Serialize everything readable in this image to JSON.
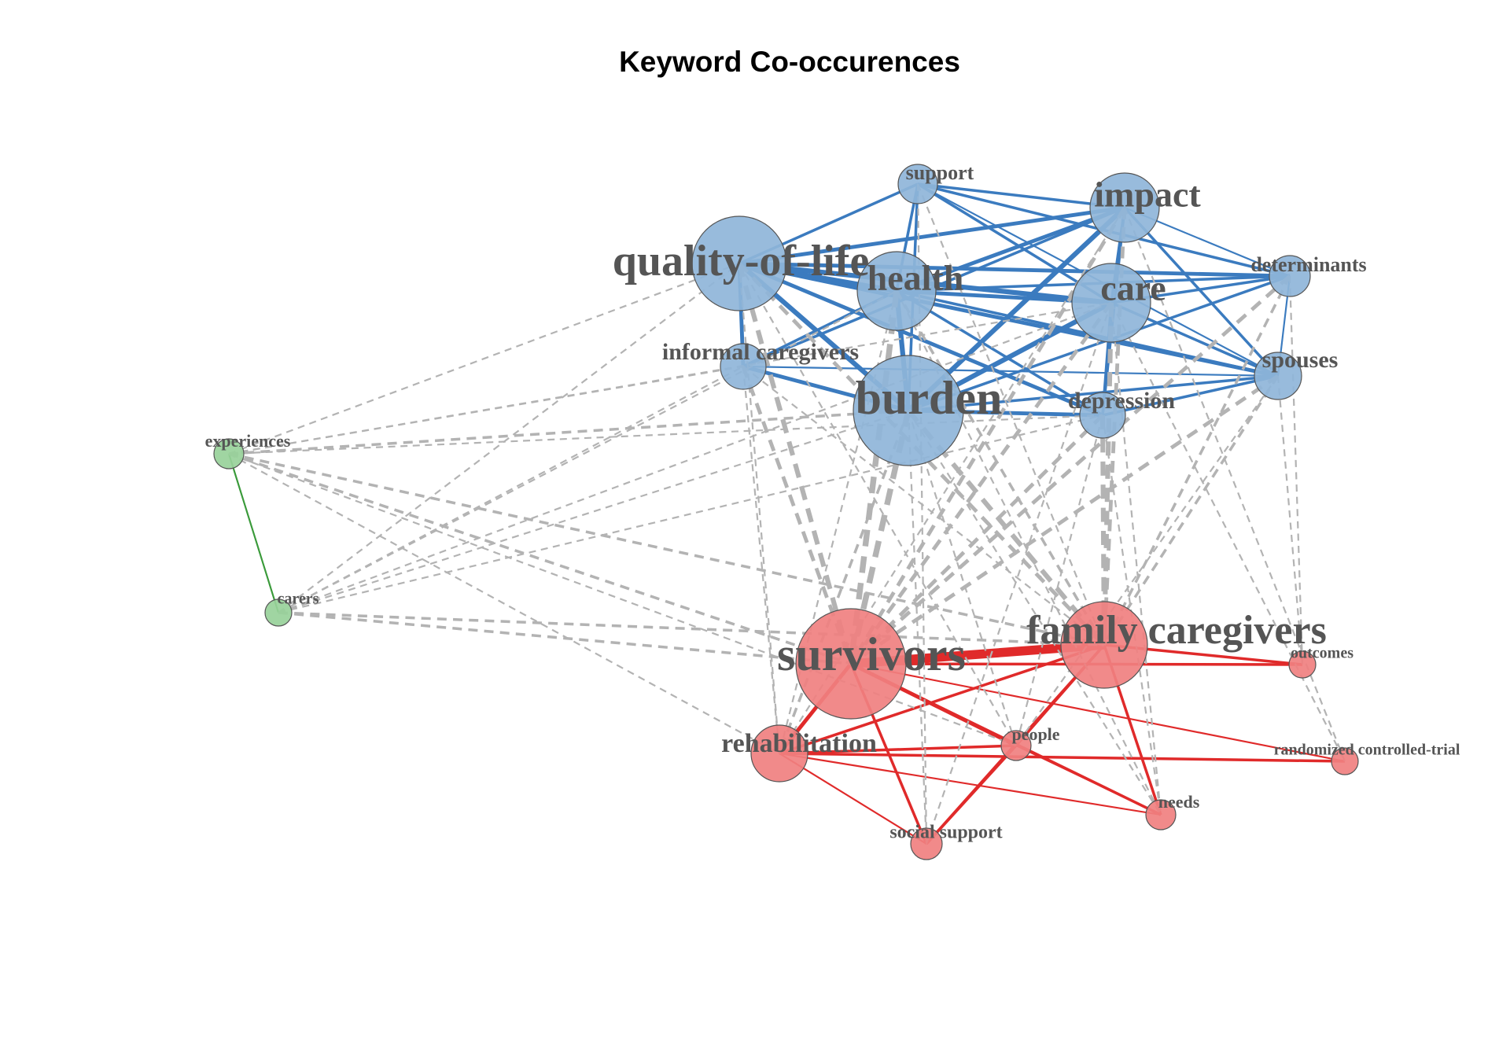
{
  "title": "Keyword Co-occurences",
  "colors": {
    "blue_cluster": "#8fb5d9",
    "blue_edge": "#3b7bbf",
    "red_cluster": "#f08080",
    "red_edge": "#e02a2a",
    "green_cluster": "#98d19a",
    "green_edge": "#3a9a3a",
    "between_edge": "#b3b3b3",
    "label": "#555555"
  },
  "nodes": [
    {
      "id": "quality-of-life",
      "label": "quality-of-life",
      "cluster": "blue"
    },
    {
      "id": "support",
      "label": "support",
      "cluster": "blue"
    },
    {
      "id": "impact",
      "label": "impact",
      "cluster": "blue"
    },
    {
      "id": "health",
      "label": "health",
      "cluster": "blue"
    },
    {
      "id": "care",
      "label": "care",
      "cluster": "blue"
    },
    {
      "id": "determinants",
      "label": "determinants",
      "cluster": "blue"
    },
    {
      "id": "informal-caregivers",
      "label": "informal caregivers",
      "cluster": "blue"
    },
    {
      "id": "burden",
      "label": "burden",
      "cluster": "blue"
    },
    {
      "id": "depression",
      "label": "depression",
      "cluster": "blue"
    },
    {
      "id": "spouses",
      "label": "spouses",
      "cluster": "blue"
    },
    {
      "id": "experiences",
      "label": "experiences",
      "cluster": "green"
    },
    {
      "id": "carers",
      "label": "carers",
      "cluster": "green"
    },
    {
      "id": "survivors",
      "label": "survivors",
      "cluster": "red"
    },
    {
      "id": "family-caregivers",
      "label": "family caregivers",
      "cluster": "red"
    },
    {
      "id": "outcomes",
      "label": "outcomes",
      "cluster": "red"
    },
    {
      "id": "rehabilitation",
      "label": "rehabilitation",
      "cluster": "red"
    },
    {
      "id": "people",
      "label": "people",
      "cluster": "red"
    },
    {
      "id": "randomized-controlled-trial",
      "label": "randomized controlled-trial",
      "cluster": "red"
    },
    {
      "id": "needs",
      "label": "needs",
      "cluster": "red"
    },
    {
      "id": "social-support",
      "label": "social support",
      "cluster": "red"
    }
  ],
  "edges": [
    {
      "source": "quality-of-life",
      "target": "health",
      "weight": 4
    },
    {
      "source": "quality-of-life",
      "target": "burden",
      "weight": 4
    },
    {
      "source": "quality-of-life",
      "target": "care",
      "weight": 4
    },
    {
      "source": "quality-of-life",
      "target": "impact",
      "weight": 3
    },
    {
      "source": "quality-of-life",
      "target": "support",
      "weight": 2
    },
    {
      "source": "quality-of-life",
      "target": "informal-caregivers",
      "weight": 3
    },
    {
      "source": "quality-of-life",
      "target": "depression",
      "weight": 3
    },
    {
      "source": "quality-of-life",
      "target": "spouses",
      "weight": 3
    },
    {
      "source": "quality-of-life",
      "target": "determinants",
      "weight": 3
    },
    {
      "source": "support",
      "target": "impact",
      "weight": 2
    },
    {
      "source": "support",
      "target": "health",
      "weight": 2
    },
    {
      "source": "support",
      "target": "care",
      "weight": 2
    },
    {
      "source": "support",
      "target": "burden",
      "weight": 2
    },
    {
      "source": "support",
      "target": "determinants",
      "weight": 2
    },
    {
      "source": "support",
      "target": "spouses",
      "weight": 1
    },
    {
      "source": "impact",
      "target": "health",
      "weight": 3
    },
    {
      "source": "impact",
      "target": "care",
      "weight": 2
    },
    {
      "source": "impact",
      "target": "burden",
      "weight": 4
    },
    {
      "source": "impact",
      "target": "determinants",
      "weight": 1
    },
    {
      "source": "impact",
      "target": "spouses",
      "weight": 2
    },
    {
      "source": "impact",
      "target": "informal-caregivers",
      "weight": 2
    },
    {
      "source": "impact",
      "target": "depression",
      "weight": 2
    },
    {
      "source": "health",
      "target": "care",
      "weight": 3
    },
    {
      "source": "health",
      "target": "burden",
      "weight": 4
    },
    {
      "source": "health",
      "target": "informal-caregivers",
      "weight": 2
    },
    {
      "source": "health",
      "target": "spouses",
      "weight": 2
    },
    {
      "source": "health",
      "target": "determinants",
      "weight": 2
    },
    {
      "source": "health",
      "target": "depression",
      "weight": 2
    },
    {
      "source": "care",
      "target": "burden",
      "weight": 4
    },
    {
      "source": "care",
      "target": "determinants",
      "weight": 2
    },
    {
      "source": "care",
      "target": "spouses",
      "weight": 2
    },
    {
      "source": "care",
      "target": "depression",
      "weight": 2
    },
    {
      "source": "burden",
      "target": "informal-caregivers",
      "weight": 3
    },
    {
      "source": "burden",
      "target": "depression",
      "weight": 3
    },
    {
      "source": "burden",
      "target": "spouses",
      "weight": 2
    },
    {
      "source": "burden",
      "target": "determinants",
      "weight": 2
    },
    {
      "source": "depression",
      "target": "spouses",
      "weight": 2
    },
    {
      "source": "determinants",
      "target": "spouses",
      "weight": 1
    },
    {
      "source": "informal-caregivers",
      "target": "spouses",
      "weight": 1
    },
    {
      "source": "experiences",
      "target": "carers",
      "weight": 1
    },
    {
      "source": "survivors",
      "target": "family-caregivers",
      "weight": 8
    },
    {
      "source": "survivors",
      "target": "rehabilitation",
      "weight": 3
    },
    {
      "source": "survivors",
      "target": "people",
      "weight": 3
    },
    {
      "source": "survivors",
      "target": "needs",
      "weight": 2
    },
    {
      "source": "survivors",
      "target": "social-support",
      "weight": 2
    },
    {
      "source": "survivors",
      "target": "outcomes",
      "weight": 2
    },
    {
      "source": "survivors",
      "target": "randomized-controlled-trial",
      "weight": 1
    },
    {
      "source": "family-caregivers",
      "target": "rehabilitation",
      "weight": 2
    },
    {
      "source": "family-caregivers",
      "target": "people",
      "weight": 2
    },
    {
      "source": "family-caregivers",
      "target": "needs",
      "weight": 2
    },
    {
      "source": "family-caregivers",
      "target": "outcomes",
      "weight": 2
    },
    {
      "source": "family-caregivers",
      "target": "social-support",
      "weight": 2
    },
    {
      "source": "rehabilitation",
      "target": "people",
      "weight": 2
    },
    {
      "source": "rehabilitation",
      "target": "needs",
      "weight": 1
    },
    {
      "source": "rehabilitation",
      "target": "randomized-controlled-trial",
      "weight": 2
    },
    {
      "source": "rehabilitation",
      "target": "social-support",
      "weight": 1
    },
    {
      "source": "people",
      "target": "needs",
      "weight": 1
    },
    {
      "source": "people",
      "target": "social-support",
      "weight": 2
    },
    {
      "source": "quality-of-life",
      "target": "survivors",
      "weight": 4
    },
    {
      "source": "health",
      "target": "survivors",
      "weight": 5
    },
    {
      "source": "burden",
      "target": "survivors",
      "weight": 5
    },
    {
      "source": "care",
      "target": "survivors",
      "weight": 3
    },
    {
      "source": "impact",
      "target": "survivors",
      "weight": 3
    },
    {
      "source": "depression",
      "target": "survivors",
      "weight": 3
    },
    {
      "source": "informal-caregivers",
      "target": "survivors",
      "weight": 3
    },
    {
      "source": "spouses",
      "target": "survivors",
      "weight": 3
    },
    {
      "source": "determinants",
      "target": "survivors",
      "weight": 3
    },
    {
      "source": "quality-of-life",
      "target": "family-caregivers",
      "weight": 3
    },
    {
      "source": "burden",
      "target": "family-caregivers",
      "weight": 4
    },
    {
      "source": "care",
      "target": "family-caregivers",
      "weight": 4
    },
    {
      "source": "impact",
      "target": "family-caregivers",
      "weight": 3
    },
    {
      "source": "depression",
      "target": "family-caregivers",
      "weight": 4
    },
    {
      "source": "health",
      "target": "family-caregivers",
      "weight": 2
    },
    {
      "source": "spouses",
      "target": "family-caregivers",
      "weight": 2
    },
    {
      "source": "determinants",
      "target": "family-caregivers",
      "weight": 2
    },
    {
      "source": "informal-caregivers",
      "target": "family-caregivers",
      "weight": 1
    },
    {
      "source": "support",
      "target": "family-caregivers",
      "weight": 1
    },
    {
      "source": "informal-caregivers",
      "target": "rehabilitation",
      "weight": 1
    },
    {
      "source": "quality-of-life",
      "target": "rehabilitation",
      "weight": 1
    },
    {
      "source": "burden",
      "target": "rehabilitation",
      "weight": 2
    },
    {
      "source": "health",
      "target": "rehabilitation",
      "weight": 1
    },
    {
      "source": "burden",
      "target": "social-support",
      "weight": 1
    },
    {
      "source": "support",
      "target": "social-support",
      "weight": 1
    },
    {
      "source": "care",
      "target": "social-support",
      "weight": 1
    },
    {
      "source": "health",
      "target": "needs",
      "weight": 1
    },
    {
      "source": "care",
      "target": "needs",
      "weight": 1
    },
    {
      "source": "depression",
      "target": "needs",
      "weight": 1
    },
    {
      "source": "burden",
      "target": "needs",
      "weight": 1
    },
    {
      "source": "spouses",
      "target": "outcomes",
      "weight": 1
    },
    {
      "source": "spouses",
      "target": "people",
      "weight": 1
    },
    {
      "source": "determinants",
      "target": "outcomes",
      "weight": 1
    },
    {
      "source": "impact",
      "target": "randomized-controlled-trial",
      "weight": 1
    },
    {
      "source": "care",
      "target": "randomized-controlled-trial",
      "weight": 1
    },
    {
      "source": "burden",
      "target": "people",
      "weight": 1
    },
    {
      "source": "depression",
      "target": "people",
      "weight": 1
    },
    {
      "source": "quality-of-life",
      "target": "people",
      "weight": 1
    },
    {
      "source": "impact",
      "target": "rehabilitation",
      "weight": 1
    },
    {
      "source": "experiences",
      "target": "quality-of-life",
      "weight": 1
    },
    {
      "source": "experiences",
      "target": "burden",
      "weight": 2
    },
    {
      "source": "experiences",
      "target": "care",
      "weight": 1
    },
    {
      "source": "experiences",
      "target": "informal-caregivers",
      "weight": 1
    },
    {
      "source": "experiences",
      "target": "depression",
      "weight": 1
    },
    {
      "source": "experiences",
      "target": "survivors",
      "weight": 2
    },
    {
      "source": "experiences",
      "target": "family-caregivers",
      "weight": 2
    },
    {
      "source": "experiences",
      "target": "rehabilitation",
      "weight": 1
    },
    {
      "source": "experiences",
      "target": "people",
      "weight": 1
    },
    {
      "source": "carers",
      "target": "quality-of-life",
      "weight": 1
    },
    {
      "source": "carers",
      "target": "health",
      "weight": 1
    },
    {
      "source": "carers",
      "target": "burden",
      "weight": 1
    },
    {
      "source": "carers",
      "target": "informal-caregivers",
      "weight": 1
    },
    {
      "source": "carers",
      "target": "care",
      "weight": 1
    },
    {
      "source": "carers",
      "target": "survivors",
      "weight": 2
    },
    {
      "source": "carers",
      "target": "family-caregivers",
      "weight": 2
    },
    {
      "source": "carers",
      "target": "depression",
      "weight": 1
    }
  ]
}
